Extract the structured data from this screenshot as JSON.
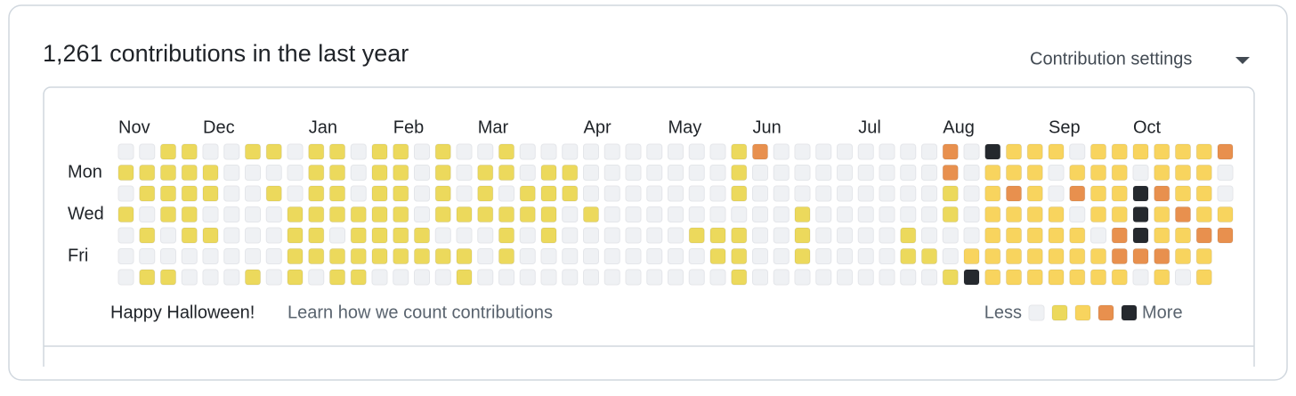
{
  "header": {
    "title": "1,261 contributions in the last year",
    "settings": "Contribution settings"
  },
  "months": [
    "Nov",
    "Dec",
    "Jan",
    "Feb",
    "Mar",
    "Apr",
    "May",
    "Jun",
    "Jul",
    "Aug",
    "Sep",
    "Oct"
  ],
  "days": [
    "Mon",
    "Wed",
    "Fri"
  ],
  "grid": {
    "rows": [
      [
        0,
        0,
        1,
        1,
        0,
        0,
        1,
        1,
        0,
        1,
        1,
        0,
        1,
        1,
        0,
        1,
        0,
        0,
        1,
        0,
        0,
        0,
        0,
        0,
        0,
        0,
        0,
        0,
        0,
        1,
        3,
        0,
        0,
        0,
        0,
        0,
        0,
        0,
        0,
        3,
        0,
        4,
        2,
        2,
        2,
        0,
        2,
        2,
        2,
        2,
        2,
        2,
        3
      ],
      [
        1,
        1,
        1,
        1,
        1,
        0,
        0,
        0,
        0,
        1,
        1,
        0,
        1,
        1,
        0,
        1,
        0,
        1,
        1,
        0,
        1,
        1,
        0,
        0,
        0,
        0,
        0,
        0,
        0,
        1,
        0,
        0,
        0,
        0,
        0,
        0,
        0,
        0,
        0,
        3,
        0,
        2,
        2,
        2,
        0,
        2,
        2,
        2,
        0,
        2,
        2,
        2,
        0
      ],
      [
        0,
        1,
        1,
        1,
        1,
        0,
        0,
        1,
        0,
        1,
        1,
        0,
        1,
        1,
        0,
        1,
        0,
        1,
        0,
        1,
        1,
        1,
        0,
        0,
        0,
        0,
        0,
        0,
        0,
        1,
        0,
        0,
        0,
        0,
        0,
        0,
        0,
        0,
        0,
        1,
        0,
        2,
        3,
        2,
        0,
        3,
        2,
        2,
        4,
        3,
        2,
        2,
        0
      ],
      [
        1,
        0,
        1,
        1,
        0,
        0,
        0,
        0,
        1,
        1,
        1,
        1,
        1,
        1,
        0,
        1,
        1,
        1,
        1,
        1,
        1,
        0,
        1,
        0,
        0,
        0,
        0,
        0,
        0,
        0,
        0,
        0,
        1,
        0,
        0,
        0,
        0,
        0,
        0,
        1,
        0,
        2,
        2,
        2,
        2,
        0,
        2,
        2,
        4,
        2,
        3,
        2,
        2
      ],
      [
        0,
        1,
        0,
        1,
        1,
        0,
        0,
        0,
        1,
        1,
        0,
        1,
        1,
        1,
        1,
        0,
        0,
        0,
        1,
        0,
        1,
        0,
        0,
        0,
        0,
        0,
        0,
        1,
        1,
        1,
        0,
        0,
        1,
        0,
        0,
        0,
        0,
        1,
        0,
        0,
        0,
        2,
        2,
        2,
        2,
        2,
        0,
        3,
        4,
        2,
        2,
        3,
        3
      ],
      [
        0,
        0,
        0,
        0,
        0,
        0,
        0,
        0,
        1,
        1,
        1,
        1,
        1,
        1,
        1,
        1,
        1,
        0,
        1,
        0,
        0,
        0,
        0,
        0,
        0,
        0,
        0,
        0,
        1,
        1,
        0,
        0,
        1,
        0,
        0,
        0,
        0,
        1,
        1,
        0,
        2,
        2,
        2,
        2,
        2,
        2,
        2,
        3,
        3,
        3,
        2,
        2,
        null
      ],
      [
        0,
        1,
        1,
        0,
        0,
        0,
        1,
        0,
        1,
        0,
        1,
        1,
        0,
        0,
        0,
        0,
        1,
        0,
        0,
        0,
        0,
        0,
        0,
        0,
        0,
        0,
        0,
        0,
        0,
        1,
        0,
        0,
        0,
        0,
        0,
        0,
        0,
        0,
        0,
        1,
        4,
        2,
        2,
        2,
        2,
        2,
        2,
        2,
        0,
        2,
        0,
        2,
        null
      ]
    ],
    "colors": [
      "#eff1f4",
      "#ecd95c",
      "#f8d45e",
      "#e8904e",
      "#25292e"
    ]
  },
  "footer": {
    "message": "Happy Halloween!",
    "link": "Learn how we count contributions"
  },
  "legend": {
    "less": "Less",
    "more": "More",
    "levels": [
      0,
      1,
      2,
      3,
      4
    ]
  }
}
